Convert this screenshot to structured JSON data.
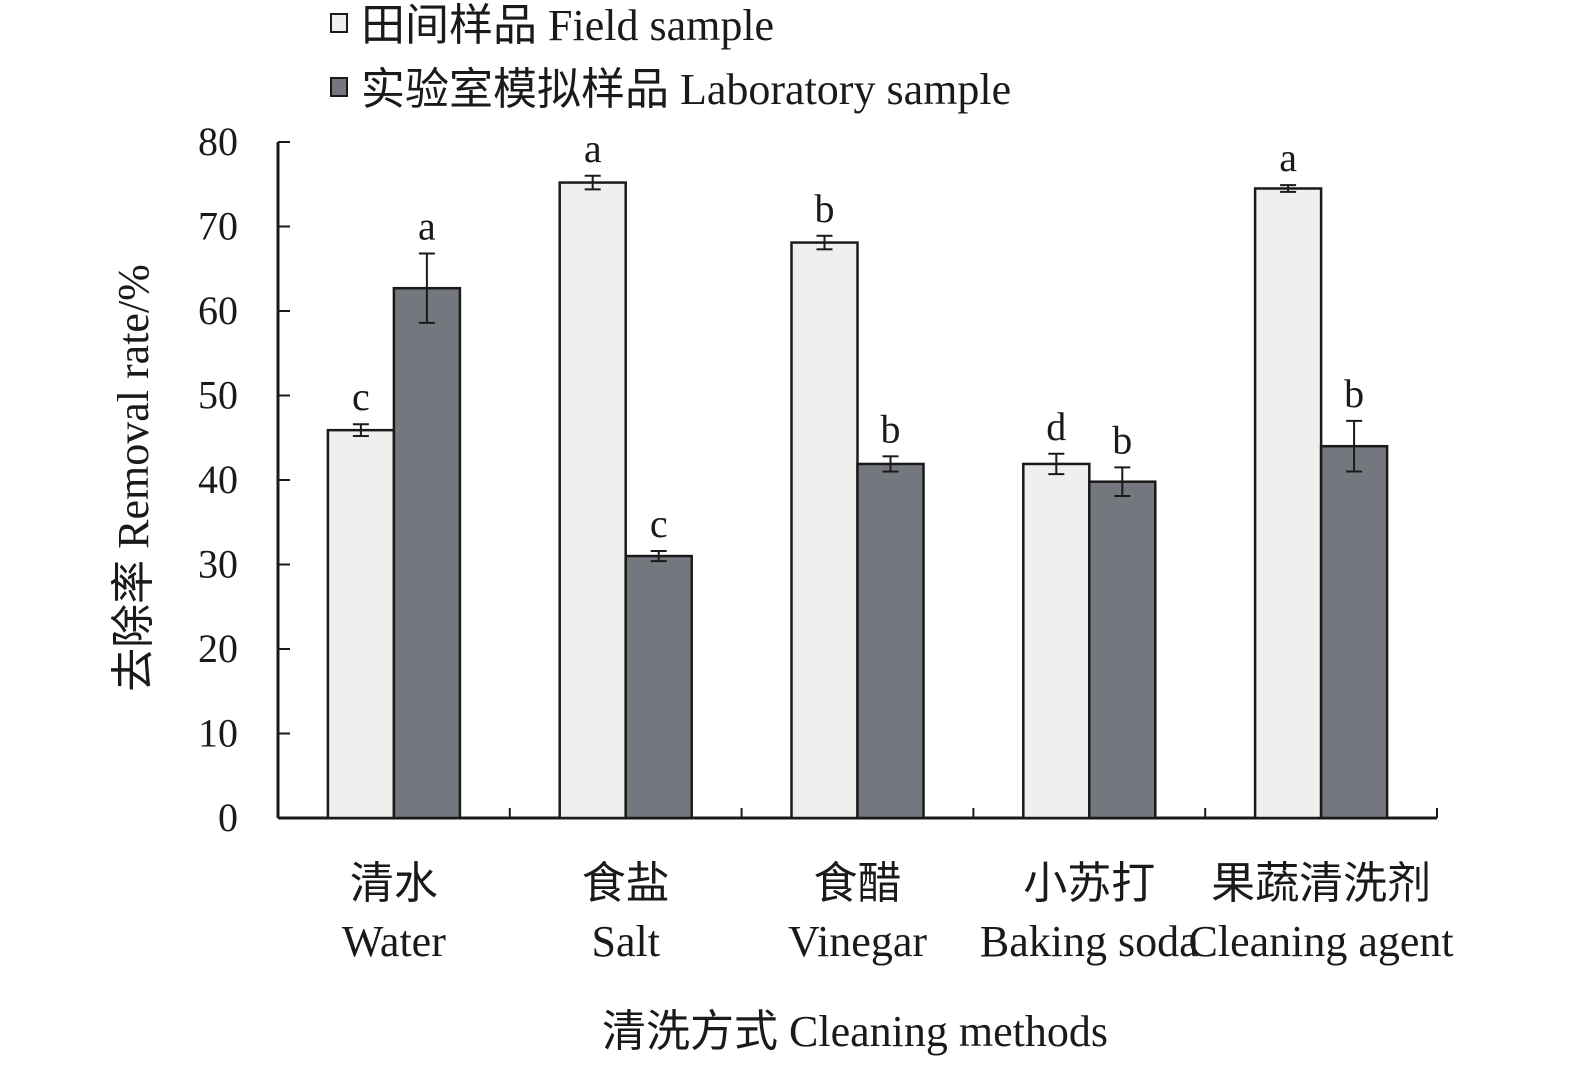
{
  "chart_data": {
    "type": "bar",
    "title": "",
    "xlabel": "清洗方式 Cleaning methods",
    "ylabel": "去除率 Removal rate/%",
    "ylim": [
      0,
      80
    ],
    "yticks": [
      0,
      10,
      20,
      30,
      40,
      50,
      60,
      70,
      80
    ],
    "grid": false,
    "legend_position": "top-left",
    "categories": [
      {
        "zh": "清水",
        "en": "Water"
      },
      {
        "zh": "食盐",
        "en": "Salt"
      },
      {
        "zh": "食醋",
        "en": "Vinegar"
      },
      {
        "zh": "小苏打",
        "en": "Baking soda"
      },
      {
        "zh": "果蔬清洗剂",
        "en": "Cleaning agent"
      }
    ],
    "series": [
      {
        "name": "田间样品 Field sample",
        "color": "#efefed",
        "values": [
          45.9,
          75.2,
          68.1,
          41.9,
          74.5
        ],
        "errors": [
          0.7,
          0.8,
          0.8,
          1.2,
          0.4
        ],
        "labels": [
          "c",
          "a",
          "b",
          "d",
          "a"
        ]
      },
      {
        "name": "实验室模拟样品 Laboratory sample",
        "color": "#74777d",
        "values": [
          62.7,
          31.0,
          41.9,
          39.8,
          44.0
        ],
        "errors": [
          4.1,
          0.6,
          0.9,
          1.7,
          3.0
        ],
        "labels": [
          "a",
          "c",
          "b",
          "b",
          "b"
        ]
      }
    ]
  }
}
